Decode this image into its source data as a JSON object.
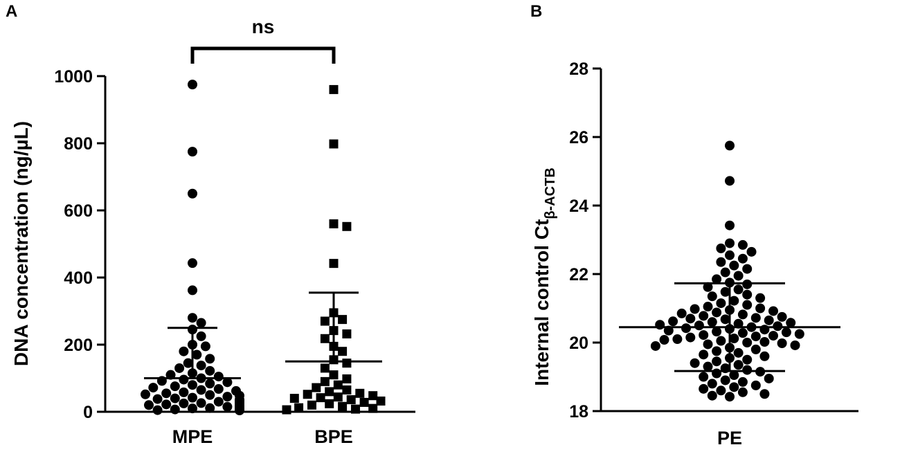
{
  "chart_data": [
    {
      "panel": "A",
      "type": "scatter",
      "ylabel": "DNA concentration (ng/µL)",
      "ylim": [
        0,
        1000
      ],
      "yticks": [
        0,
        200,
        400,
        600,
        800,
        1000
      ],
      "categories": [
        "MPE",
        "BPE"
      ],
      "significance": "ns",
      "series": [
        {
          "category": "MPE",
          "marker": "circle",
          "mean": 100,
          "sd_upper": 250,
          "values": [
            975,
            775,
            650,
            443,
            362,
            280,
            265,
            245,
            225,
            200,
            195,
            180,
            170,
            158,
            145,
            138,
            130,
            122,
            115,
            110,
            105,
            100,
            96,
            92,
            88,
            84,
            80,
            76,
            72,
            68,
            65,
            62,
            58,
            55,
            52,
            50,
            48,
            45,
            42,
            40,
            38,
            36,
            34,
            32,
            30,
            28,
            26,
            25,
            24,
            22,
            20,
            18,
            17,
            16,
            15,
            14,
            13,
            12,
            11,
            10,
            9,
            8,
            7,
            6,
            5,
            5,
            4
          ]
        },
        {
          "category": "BPE",
          "marker": "square",
          "mean": 150,
          "sd_upper": 355,
          "values": [
            960,
            798,
            560,
            552,
            442,
            295,
            275,
            270,
            242,
            232,
            218,
            195,
            180,
            155,
            145,
            130,
            110,
            98,
            90,
            80,
            72,
            65,
            60,
            55,
            52,
            48,
            44,
            42,
            40,
            36,
            32,
            28,
            24,
            20,
            16,
            12,
            10,
            8,
            6
          ]
        }
      ]
    },
    {
      "panel": "B",
      "type": "scatter",
      "ylabel_main": "Internal control Ct",
      "ylabel_sub": "β-ACTB",
      "ylim": [
        18,
        28
      ],
      "yticks": [
        18,
        20,
        22,
        24,
        26,
        28
      ],
      "categories": [
        "PE"
      ],
      "series": [
        {
          "category": "PE",
          "marker": "circle",
          "mean": 20.45,
          "sd_lower": 19.17,
          "sd_upper": 21.73,
          "values": [
            25.75,
            24.72,
            23.42,
            22.9,
            22.85,
            22.75,
            22.65,
            22.55,
            22.45,
            22.35,
            22.25,
            22.15,
            22.05,
            21.95,
            21.85,
            21.75,
            21.7,
            21.62,
            21.55,
            21.48,
            21.4,
            21.35,
            21.3,
            21.22,
            21.15,
            21.1,
            21.05,
            21.0,
            20.98,
            20.95,
            20.92,
            20.88,
            20.85,
            20.82,
            20.78,
            20.75,
            20.72,
            20.7,
            20.68,
            20.65,
            20.62,
            20.6,
            20.58,
            20.55,
            20.52,
            20.5,
            20.48,
            20.45,
            20.42,
            20.4,
            20.38,
            20.35,
            20.32,
            20.3,
            20.28,
            20.25,
            20.22,
            20.2,
            20.18,
            20.15,
            20.12,
            20.1,
            20.08,
            20.05,
            20.02,
            20.0,
            19.98,
            19.95,
            19.92,
            19.9,
            19.85,
            19.8,
            19.75,
            19.7,
            19.65,
            19.6,
            19.55,
            19.5,
            19.45,
            19.4,
            19.35,
            19.3,
            19.25,
            19.2,
            19.15,
            19.1,
            19.05,
            19.0,
            18.95,
            18.9,
            18.85,
            18.8,
            18.75,
            18.7,
            18.65,
            18.6,
            18.55,
            18.5,
            18.45,
            18.42
          ]
        }
      ]
    }
  ]
}
